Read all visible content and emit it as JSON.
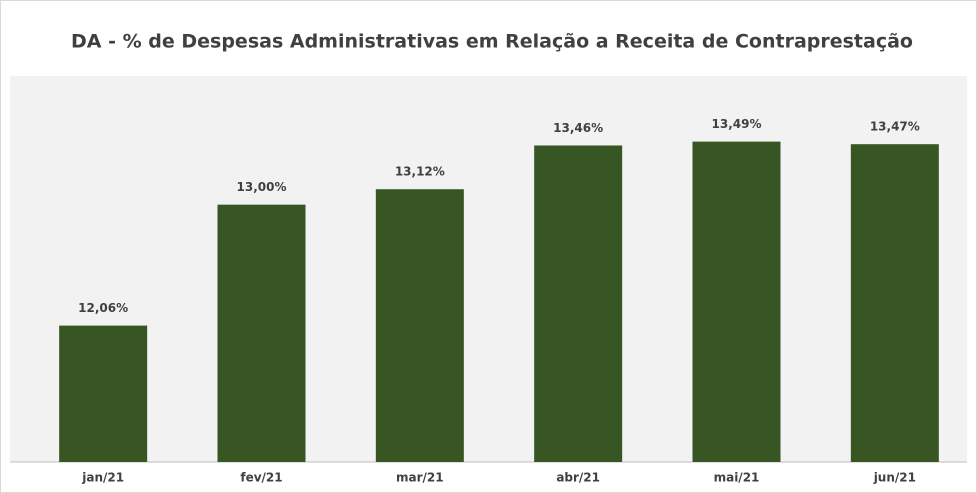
{
  "chart_data": {
    "type": "bar",
    "title": "DA - % de Despesas Administrativas em Relação a Receita de Contraprestação",
    "categories": [
      "jan/21",
      "fev/21",
      "mar/21",
      "abr/21",
      "mai/21",
      "jun/21"
    ],
    "values": [
      12.06,
      13.0,
      13.12,
      13.46,
      13.49,
      13.47
    ],
    "value_labels": [
      "12,06%",
      "13,00%",
      "13,12%",
      "13,46%",
      "13,49%",
      "13,47%"
    ],
    "color": "#375623",
    "ylim": [
      11,
      14
    ]
  }
}
